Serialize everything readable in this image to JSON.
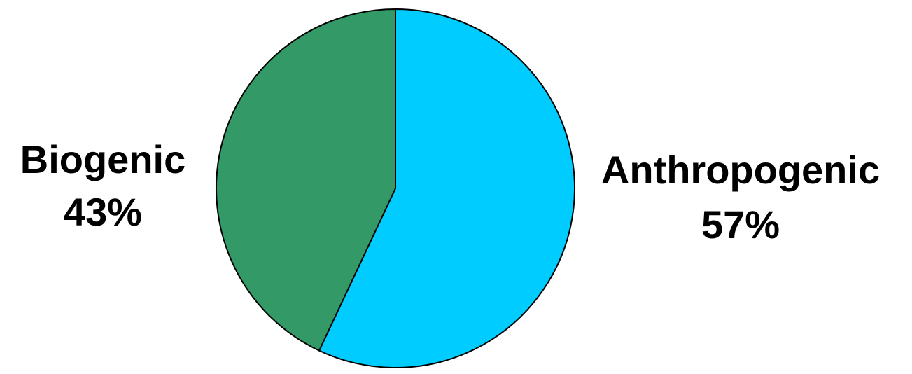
{
  "chart_data": {
    "type": "pie",
    "title": "",
    "series": [
      {
        "values": [
          57,
          43
        ]
      }
    ],
    "categories": [
      "Anthropogenic",
      "Biogenic"
    ],
    "labels": [
      {
        "category": "Anthropogenic",
        "percent": "57%"
      },
      {
        "category": "Biogenic",
        "percent": "43%"
      }
    ],
    "colors": [
      "#00ccff",
      "#339966"
    ],
    "start_angle": "12 o'clock",
    "direction": "clockwise",
    "legend": "none"
  }
}
